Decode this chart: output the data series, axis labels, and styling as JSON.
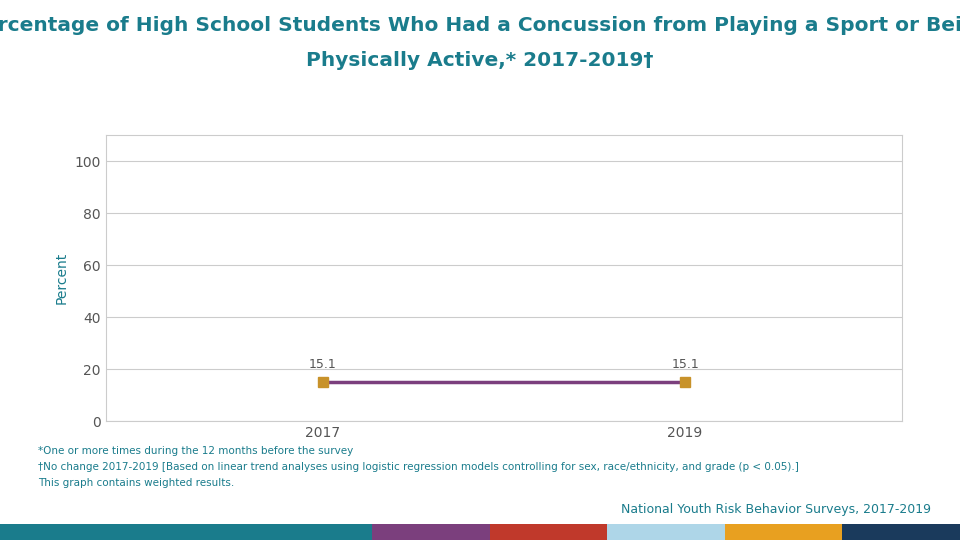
{
  "title_line1": "Percentage of High School Students Who Had a Concussion from Playing a Sport or Being",
  "title_line2": "Physically Active,* 2017-2019†",
  "title_color": "#1a7c8c",
  "title_fontsize": 14.5,
  "x_values": [
    2017,
    2019
  ],
  "y_values": [
    15.1,
    15.1
  ],
  "line_color": "#7b3f7d",
  "marker_color": "#c8922a",
  "marker_style": "s",
  "marker_size": 7,
  "line_width": 2.5,
  "ylabel": "Percent",
  "ylabel_color": "#1a7c8c",
  "ylabel_fontsize": 10,
  "yticks": [
    0,
    20,
    40,
    60,
    80,
    100
  ],
  "ylim": [
    0,
    110
  ],
  "xtick_labels": [
    "2017",
    "2019"
  ],
  "xtick_fontsize": 10,
  "ytick_fontsize": 10,
  "tick_color": "#555555",
  "data_label_fontsize": 9,
  "data_label_color": "#555555",
  "footnote1": "*One or more times during the 12 months before the survey",
  "footnote2": "†No change 2017-2019 [Based on linear trend analyses using logistic regression models controlling for sex, race/ethnicity, and grade (p < 0.05).]",
  "footnote3": "This graph contains weighted results.",
  "footnote_color": "#1a7c8c",
  "footnote_fontsize": 7.5,
  "source_text": "National Youth Risk Behavior Surveys, 2017-2019",
  "source_color": "#1a7c8c",
  "source_fontsize": 9,
  "bg_color": "#ffffff",
  "plot_bg_color": "#ffffff",
  "grid_color": "#cccccc",
  "border_colors": [
    "#1a7c8c",
    "#7b3f7d",
    "#c0392b",
    "#aed6e8",
    "#e8a020",
    "#1a3a5c"
  ],
  "border_widths": [
    0.38,
    0.12,
    0.12,
    0.12,
    0.12,
    0.12
  ]
}
